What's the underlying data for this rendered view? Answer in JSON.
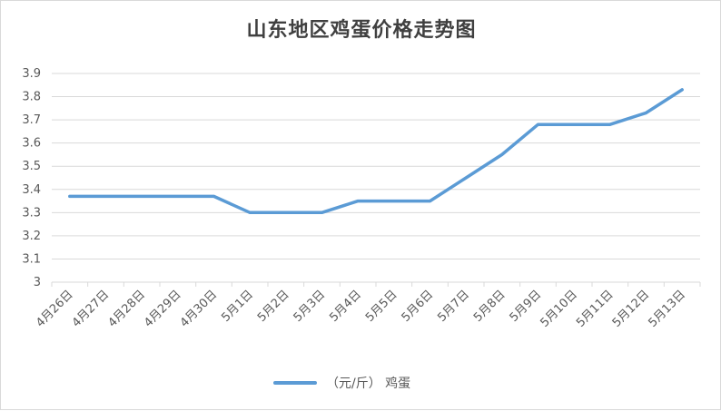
{
  "chart_data": {
    "type": "line",
    "title": "山东地区鸡蛋价格走势图",
    "xlabel": "",
    "ylabel": "",
    "categories": [
      "4月26日",
      "4月27日",
      "4月28日",
      "4月29日",
      "4月30日",
      "5月1日",
      "5月2日",
      "5月3日",
      "5月4日",
      "5月5日",
      "5月6日",
      "5月7日",
      "5月8日",
      "5月9日",
      "5月10日",
      "5月11日",
      "5月12日",
      "5月13日"
    ],
    "series": [
      {
        "name": "（元/斤） 鸡蛋",
        "values": [
          3.37,
          3.37,
          3.37,
          3.37,
          3.37,
          3.3,
          3.3,
          3.3,
          3.35,
          3.35,
          3.35,
          3.45,
          3.55,
          3.68,
          3.68,
          3.68,
          3.73,
          3.83
        ]
      }
    ],
    "ylim": [
      3.0,
      3.9
    ],
    "yticks": [
      "3",
      "3.1",
      "3.2",
      "3.3",
      "3.4",
      "3.5",
      "3.6",
      "3.7",
      "3.8",
      "3.9"
    ],
    "grid": true,
    "legend_position": "bottom",
    "colors": {
      "series": "#5b9bd5",
      "grid": "#d9d9d9",
      "text": "#595959",
      "title": "#404040"
    }
  }
}
